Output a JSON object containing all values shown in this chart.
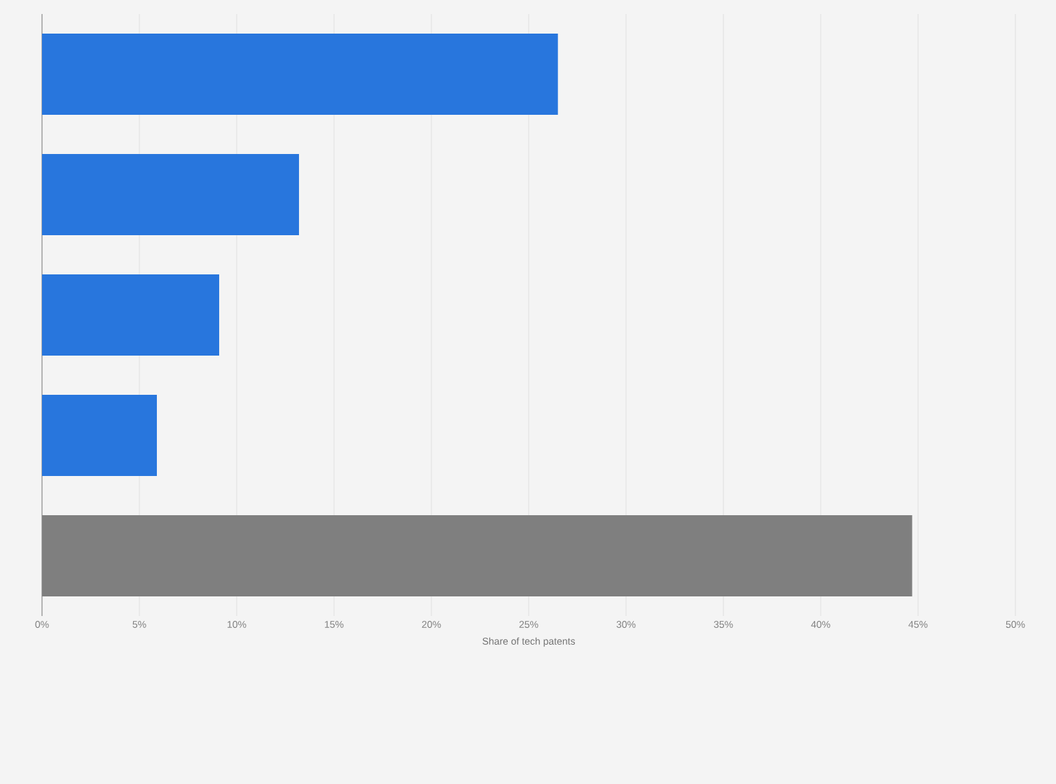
{
  "chart_data": {
    "type": "bar",
    "orientation": "horizontal",
    "xlabel": "Share of tech patents",
    "categories": [
      null,
      null,
      null,
      null,
      null
    ],
    "values": [
      26.5,
      13.2,
      9.1,
      5.9,
      44.7
    ],
    "colors": [
      "#2876dd",
      "#2876dd",
      "#2876dd",
      "#2876dd",
      "#7f7f7f"
    ],
    "xlim": [
      0,
      50
    ],
    "xticks": [
      {
        "value": 0,
        "label": "0%"
      },
      {
        "value": 5,
        "label": "5%"
      },
      {
        "value": 10,
        "label": "10%"
      },
      {
        "value": 15,
        "label": "15%"
      },
      {
        "value": 20,
        "label": "20%"
      },
      {
        "value": 25,
        "label": "25%"
      },
      {
        "value": 30,
        "label": "30%"
      },
      {
        "value": 35,
        "label": "35%"
      },
      {
        "value": 40,
        "label": "40%"
      },
      {
        "value": 45,
        "label": "45%"
      },
      {
        "value": 50,
        "label": "50%"
      }
    ],
    "grid": "x"
  }
}
